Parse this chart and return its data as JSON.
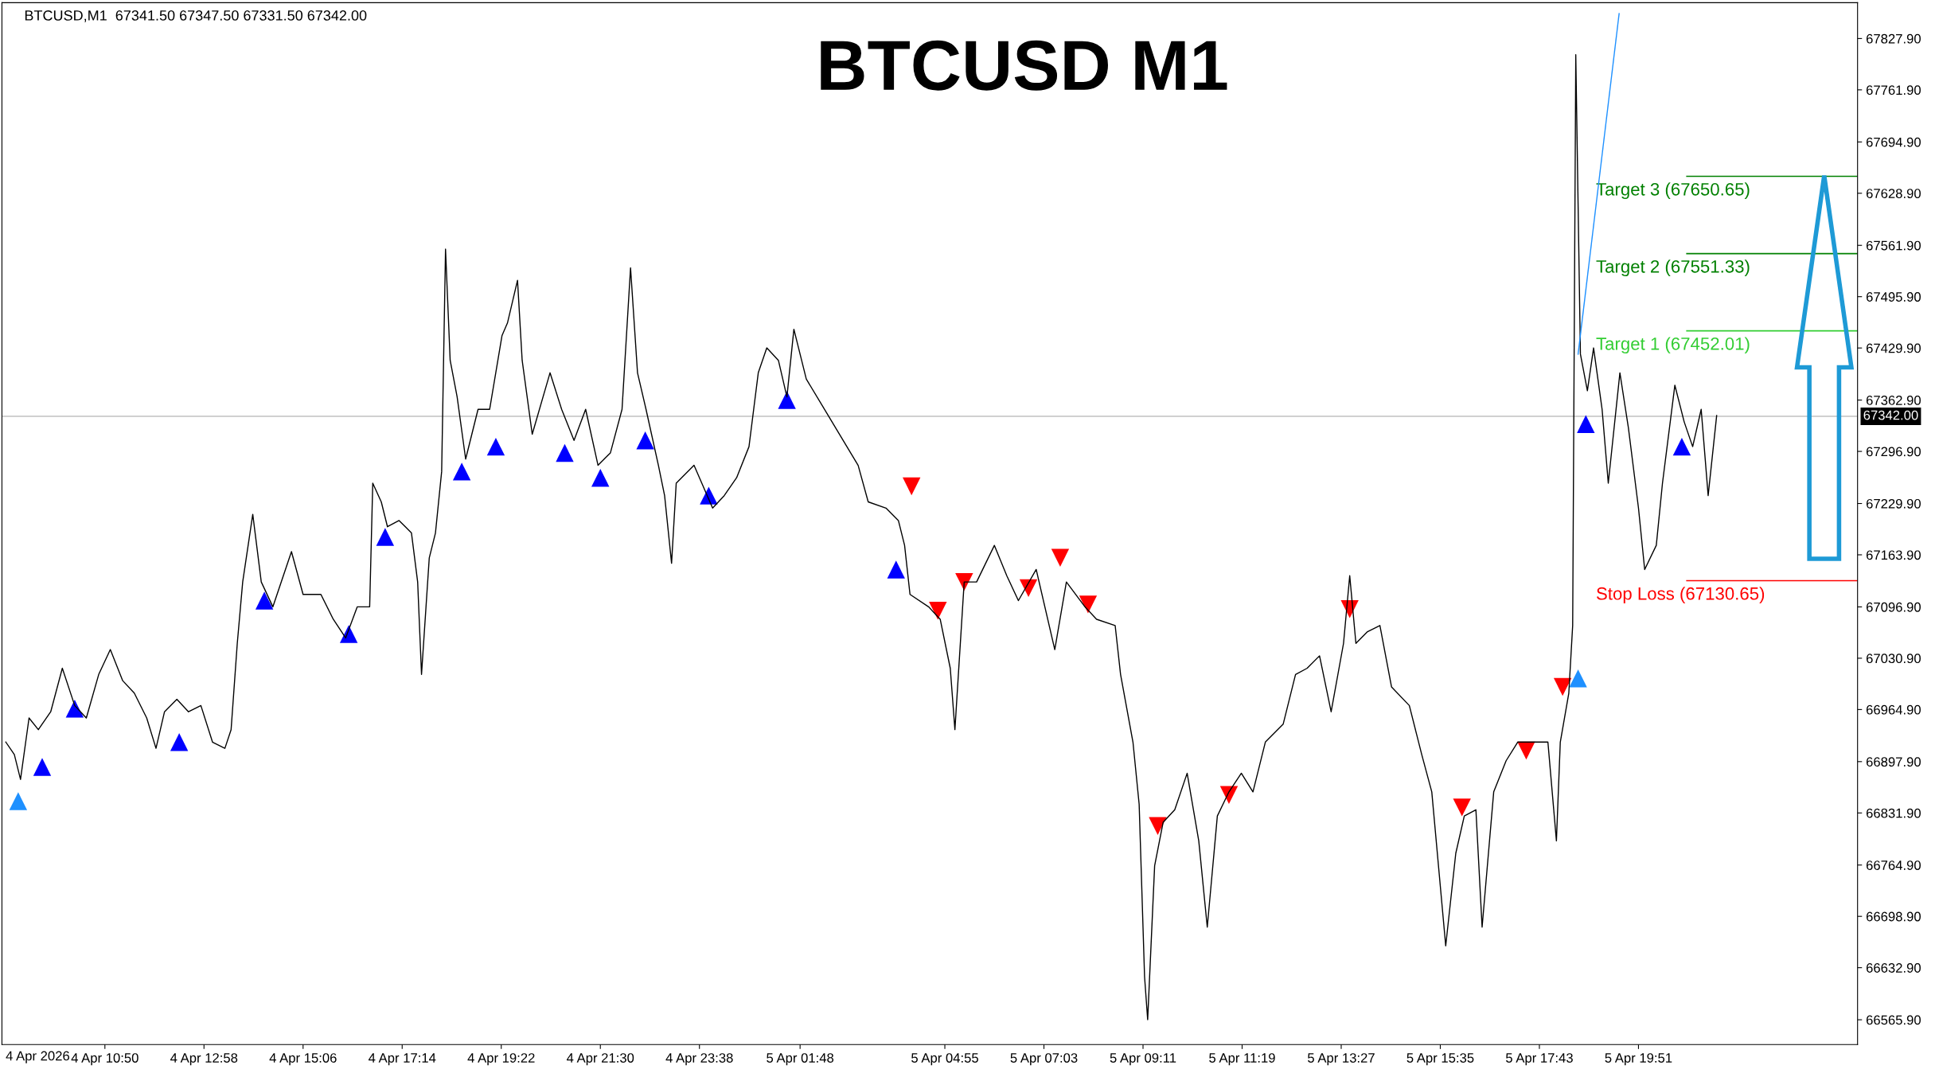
{
  "chart_data": {
    "type": "line",
    "title": "BTCUSD M1",
    "annotations": [
      "BTCUSD,M1  67341.50 67347.50 67331.50 67342.00",
      "4 Apr 2026"
    ],
    "xlim": [
      "2026-04-04T08:37",
      "2026-04-06T00:34"
    ],
    "ylim": [
      66534,
      67874
    ],
    "xticks": [
      {
        "value": "2026-04-04T10:50",
        "label": "4 Apr 10:50"
      },
      {
        "value": "2026-04-04T12:58",
        "label": "4 Apr 12:58"
      },
      {
        "value": "2026-04-04T15:06",
        "label": "4 Apr 15:06"
      },
      {
        "value": "2026-04-04T17:14",
        "label": "4 Apr 17:14"
      },
      {
        "value": "2026-04-04T19:22",
        "label": "4 Apr 19:22"
      },
      {
        "value": "2026-04-04T21:30",
        "label": "4 Apr 21:30"
      },
      {
        "value": "2026-04-04T23:38",
        "label": "4 Apr 23:38"
      },
      {
        "value": "2026-04-05T01:48",
        "label": "5 Apr 01:48"
      },
      {
        "value": "2026-04-05T04:55",
        "label": "5 Apr 04:55"
      },
      {
        "value": "2026-04-05T07:03",
        "label": "5 Apr 07:03"
      },
      {
        "value": "2026-04-05T09:11",
        "label": "5 Apr 09:11"
      },
      {
        "value": "2026-04-05T11:19",
        "label": "5 Apr 11:19"
      },
      {
        "value": "2026-04-05T13:27",
        "label": "5 Apr 13:27"
      },
      {
        "value": "2026-04-05T15:35",
        "label": "5 Apr 15:35"
      },
      {
        "value": "2026-04-05T17:43",
        "label": "5 Apr 17:43"
      },
      {
        "value": "2026-04-05T19:51",
        "label": "5 Apr 19:51"
      }
    ],
    "yticks": [
      {
        "value": 67827.9,
        "label": "67827.90"
      },
      {
        "value": 67761.9,
        "label": "67761.90"
      },
      {
        "value": 67694.9,
        "label": "67694.90"
      },
      {
        "value": 67628.9,
        "label": "67628.90"
      },
      {
        "value": 67561.9,
        "label": "67561.90"
      },
      {
        "value": 67495.9,
        "label": "67495.90"
      },
      {
        "value": 67429.9,
        "label": "67429.90"
      },
      {
        "value": 67362.9,
        "label": "67362.90"
      },
      {
        "value": 67296.9,
        "label": "67296.90"
      },
      {
        "value": 67229.9,
        "label": "67229.90"
      },
      {
        "value": 67163.9,
        "label": "67163.90"
      },
      {
        "value": 67096.9,
        "label": "67096.90"
      },
      {
        "value": 67030.9,
        "label": "67030.90"
      },
      {
        "value": 66964.9,
        "label": "66964.90"
      },
      {
        "value": 66897.9,
        "label": "66897.90"
      },
      {
        "value": 66831.9,
        "label": "66831.90"
      },
      {
        "value": 66764.9,
        "label": "66764.90"
      },
      {
        "value": 66698.9,
        "label": "66698.90"
      },
      {
        "value": 66632.9,
        "label": "66632.90"
      },
      {
        "value": 66565.9,
        "label": "66565.90"
      }
    ],
    "grid": false,
    "legend": false,
    "series": [
      {
        "color": "#000000",
        "marker": "none",
        "x": [
          "2026-04-04T08:42",
          "2026-04-04T08:53",
          "2026-04-04T09:01",
          "2026-04-04T09:12",
          "2026-04-04T09:24",
          "2026-04-04T09:40",
          "2026-04-04T09:55",
          "2026-04-04T10:11",
          "2026-04-04T10:26",
          "2026-04-04T10:42",
          "2026-04-04T10:57",
          "2026-04-04T11:13",
          "2026-04-04T11:28",
          "2026-04-04T11:44",
          "2026-04-04T11:56",
          "2026-04-04T12:07",
          "2026-04-04T12:23",
          "2026-04-04T12:38",
          "2026-04-04T12:54",
          "2026-04-04T13:09",
          "2026-04-04T13:25",
          "2026-04-04T13:33",
          "2026-04-04T13:41",
          "2026-04-04T13:48",
          "2026-04-04T14:01",
          "2026-04-04T14:12",
          "2026-04-04T14:27",
          "2026-04-04T14:51",
          "2026-04-04T15:06",
          "2026-04-04T15:29",
          "2026-04-04T15:45",
          "2026-04-04T16:01",
          "2026-04-04T16:16",
          "2026-04-04T16:32",
          "2026-04-04T16:36",
          "2026-04-04T16:47",
          "2026-04-04T16:55",
          "2026-04-04T17:10",
          "2026-04-04T17:26",
          "2026-04-04T17:34",
          "2026-04-04T17:39",
          "2026-04-04T17:49",
          "2026-04-04T17:57",
          "2026-04-04T18:05",
          "2026-04-04T18:10",
          "2026-04-04T18:16",
          "2026-04-04T18:25",
          "2026-04-04T18:36",
          "2026-04-04T18:52",
          "2026-04-04T19:07",
          "2026-04-04T19:23",
          "2026-04-04T19:30",
          "2026-04-04T19:43",
          "2026-04-04T19:49",
          "2026-04-04T20:02",
          "2026-04-04T20:25",
          "2026-04-04T20:40",
          "2026-04-04T20:56",
          "2026-04-04T21:11",
          "2026-04-04T21:27",
          "2026-04-04T21:43",
          "2026-04-04T21:58",
          "2026-04-04T22:09",
          "2026-04-04T22:18",
          "2026-04-04T22:29",
          "2026-04-04T22:45",
          "2026-04-04T22:53",
          "2026-04-04T23:02",
          "2026-04-04T23:08",
          "2026-04-04T23:31",
          "2026-04-04T23:55",
          "2026-04-05T00:10",
          "2026-04-05T00:26",
          "2026-04-05T00:42",
          "2026-04-05T00:54",
          "2026-04-05T01:05",
          "2026-04-05T01:20",
          "2026-04-05T01:31",
          "2026-04-05T01:40",
          "2026-04-05T01:56",
          "2026-04-05T03:03",
          "2026-04-05T03:16",
          "2026-04-05T03:39",
          "2026-04-05T03:55",
          "2026-04-05T04:03",
          "2026-04-05T04:10",
          "2026-04-05T04:34",
          "2026-04-05T04:49",
          "2026-04-05T05:02",
          "2026-04-05T05:08",
          "2026-04-05T05:20",
          "2026-04-05T05:36",
          "2026-04-05T05:59",
          "2026-04-05T06:15",
          "2026-04-05T06:30",
          "2026-04-05T06:53",
          "2026-04-05T07:17",
          "2026-04-05T07:32",
          "2026-04-05T07:56",
          "2026-04-05T08:11",
          "2026-04-05T08:35",
          "2026-04-05T08:42",
          "2026-04-05T08:58",
          "2026-04-05T09:06",
          "2026-04-05T09:13",
          "2026-04-05T09:17",
          "2026-04-05T09:26",
          "2026-04-05T09:37",
          "2026-04-05T09:52",
          "2026-04-05T10:08",
          "2026-04-05T10:23",
          "2026-04-05T10:34",
          "2026-04-05T10:47",
          "2026-04-05T11:02",
          "2026-04-05T11:18",
          "2026-04-05T11:33",
          "2026-04-05T11:49",
          "2026-04-05T12:12",
          "2026-04-05T12:28",
          "2026-04-05T12:43",
          "2026-04-05T12:59",
          "2026-04-05T13:14",
          "2026-04-05T13:30",
          "2026-04-05T13:38",
          "2026-04-05T13:46",
          "2026-04-05T14:01",
          "2026-04-05T14:17",
          "2026-04-05T14:32",
          "2026-04-05T14:55",
          "2026-04-05T15:11",
          "2026-04-05T15:24",
          "2026-04-05T15:42",
          "2026-04-05T15:55",
          "2026-04-05T16:06",
          "2026-04-05T16:21",
          "2026-04-05T16:29",
          "2026-04-05T16:44",
          "2026-04-05T17:00",
          "2026-04-05T17:15",
          "2026-04-05T17:39",
          "2026-04-05T17:54",
          "2026-04-05T18:05",
          "2026-04-05T18:10",
          "2026-04-05T18:21",
          "2026-04-05T18:26",
          "2026-04-05T18:30",
          "2026-04-05T18:36",
          "2026-04-05T18:45",
          "2026-04-05T18:53",
          "2026-04-05T19:04",
          "2026-04-05T19:12",
          "2026-04-05T19:27",
          "2026-04-05T19:38",
          "2026-04-05T19:51",
          "2026-04-05T19:59",
          "2026-04-05T20:14",
          "2026-04-05T20:22",
          "2026-04-05T20:38",
          "2026-04-05T20:50",
          "2026-04-05T21:01",
          "2026-04-05T21:12",
          "2026-04-05T21:21",
          "2026-04-05T21:32"
        ],
        "values": [
          66923,
          66907,
          66875,
          66954,
          66939,
          66962,
          67018,
          66970,
          66954,
          67010,
          67042,
          67002,
          66986,
          66954,
          66915,
          66962,
          66978,
          66962,
          66970,
          66923,
          66915,
          66939,
          67050,
          67129,
          67216,
          67129,
          67097,
          67168,
          67113,
          67113,
          67081,
          67057,
          67097,
          67097,
          67256,
          67232,
          67200,
          67208,
          67192,
          67129,
          67010,
          67160,
          67192,
          67271,
          67557,
          67414,
          67367,
          67287,
          67351,
          67351,
          67446,
          67462,
          67517,
          67414,
          67319,
          67398,
          67351,
          67311,
          67351,
          67279,
          67295,
          67351,
          67533,
          67398,
          67351,
          67279,
          67240,
          67153,
          67256,
          67279,
          67224,
          67240,
          67263,
          67303,
          67398,
          67430,
          67414,
          67367,
          67454,
          67390,
          67279,
          67232,
          67224,
          67208,
          67176,
          67113,
          67097,
          67081,
          67018,
          66939,
          67129,
          67129,
          67176,
          67137,
          67105,
          67145,
          67042,
          67129,
          67097,
          67081,
          67073,
          67010,
          66923,
          66843,
          66621,
          66566,
          66764,
          66820,
          66836,
          66883,
          66796,
          66685,
          66828,
          66859,
          66883,
          66859,
          66923,
          66946,
          67010,
          67018,
          67034,
          66962,
          67050,
          67137,
          67050,
          67065,
          67073,
          66994,
          66970,
          66907,
          66859,
          66661,
          66780,
          66828,
          66836,
          66685,
          66859,
          66899,
          66923,
          66923,
          66923,
          66796,
          66923,
          66986,
          67073,
          67807,
          67422,
          67375,
          67430,
          67351,
          67256,
          67398,
          67327,
          67224,
          67145,
          67176,
          67256,
          67382,
          67335,
          67303,
          67351,
          67240,
          67343
        ]
      },
      {
        "type": "line",
        "color": "#1e90ff",
        "marker": "none",
        "x": [
          "2026-04-05T18:33",
          "2026-04-05T19:26"
        ],
        "values": [
          67422,
          67860
        ]
      },
      {
        "type": "scatter",
        "color": "#0000ff",
        "marker": "triangle",
        "x": [
          "2026-04-04T09:29",
          "2026-04-04T10:11",
          "2026-04-04T12:26",
          "2026-04-04T14:16",
          "2026-04-04T16:05",
          "2026-04-04T16:52",
          "2026-04-04T18:31",
          "2026-04-04T19:15",
          "2026-04-04T20:44",
          "2026-04-04T21:30",
          "2026-04-04T22:28",
          "2026-04-04T23:50",
          "2026-04-05T01:31",
          "2026-04-05T03:52",
          "2026-04-05T18:43",
          "2026-04-05T20:47"
        ],
        "values": [
          66891,
          66966,
          66923,
          67105,
          67062,
          67187,
          67271,
          67303,
          67295,
          67263,
          67311,
          67240,
          67363,
          67145,
          67332,
          67303
        ]
      },
      {
        "type": "scatter",
        "color": "#ff0000",
        "x": [
          "2026-04-05T04:46",
          "2026-04-05T05:20",
          "2026-04-05T06:43",
          "2026-04-05T07:24",
          "2026-04-05T08:00",
          "2026-04-05T09:30",
          "2026-04-05T11:02",
          "2026-04-05T13:38",
          "2026-04-05T16:03",
          "2026-04-05T17:26",
          "2026-04-05T18:13"
        ],
        "values": [
          67092,
          67129,
          67121,
          67160,
          67100,
          66815,
          66855,
          67094,
          66839,
          66912,
          66994
        ]
      },
      {
        "type": "scatter",
        "color": "#1e90ff",
        "marker": "triangle",
        "x": [
          "2026-04-04T08:58",
          "2026-04-05T18:33"
        ],
        "values": [
          66847,
          67005
        ]
      },
      {
        "type": "scatter",
        "color": "#ff0000",
        "x": [
          "2026-04-05T04:12"
        ],
        "values": [
          67252
        ]
      }
    ],
    "ref_lines": [
      {
        "axis": "y",
        "value": 67342.0,
        "label": "67342.00",
        "color": "#c0c0c0"
      },
      {
        "axis": "y",
        "value": 67650.65,
        "label": "Target 3 (67650.65)",
        "color": "#008000"
      },
      {
        "axis": "y",
        "value": 67551.33,
        "label": "Target 2 (67551.33)",
        "color": "#008000"
      },
      {
        "axis": "y",
        "value": 67452.01,
        "label": "Target 1 (67452.01)",
        "color": "#32cd32"
      },
      {
        "axis": "y",
        "value": 67130.65,
        "label": "Stop Loss (67130.65)",
        "color": "#ff0000"
      }
    ]
  }
}
